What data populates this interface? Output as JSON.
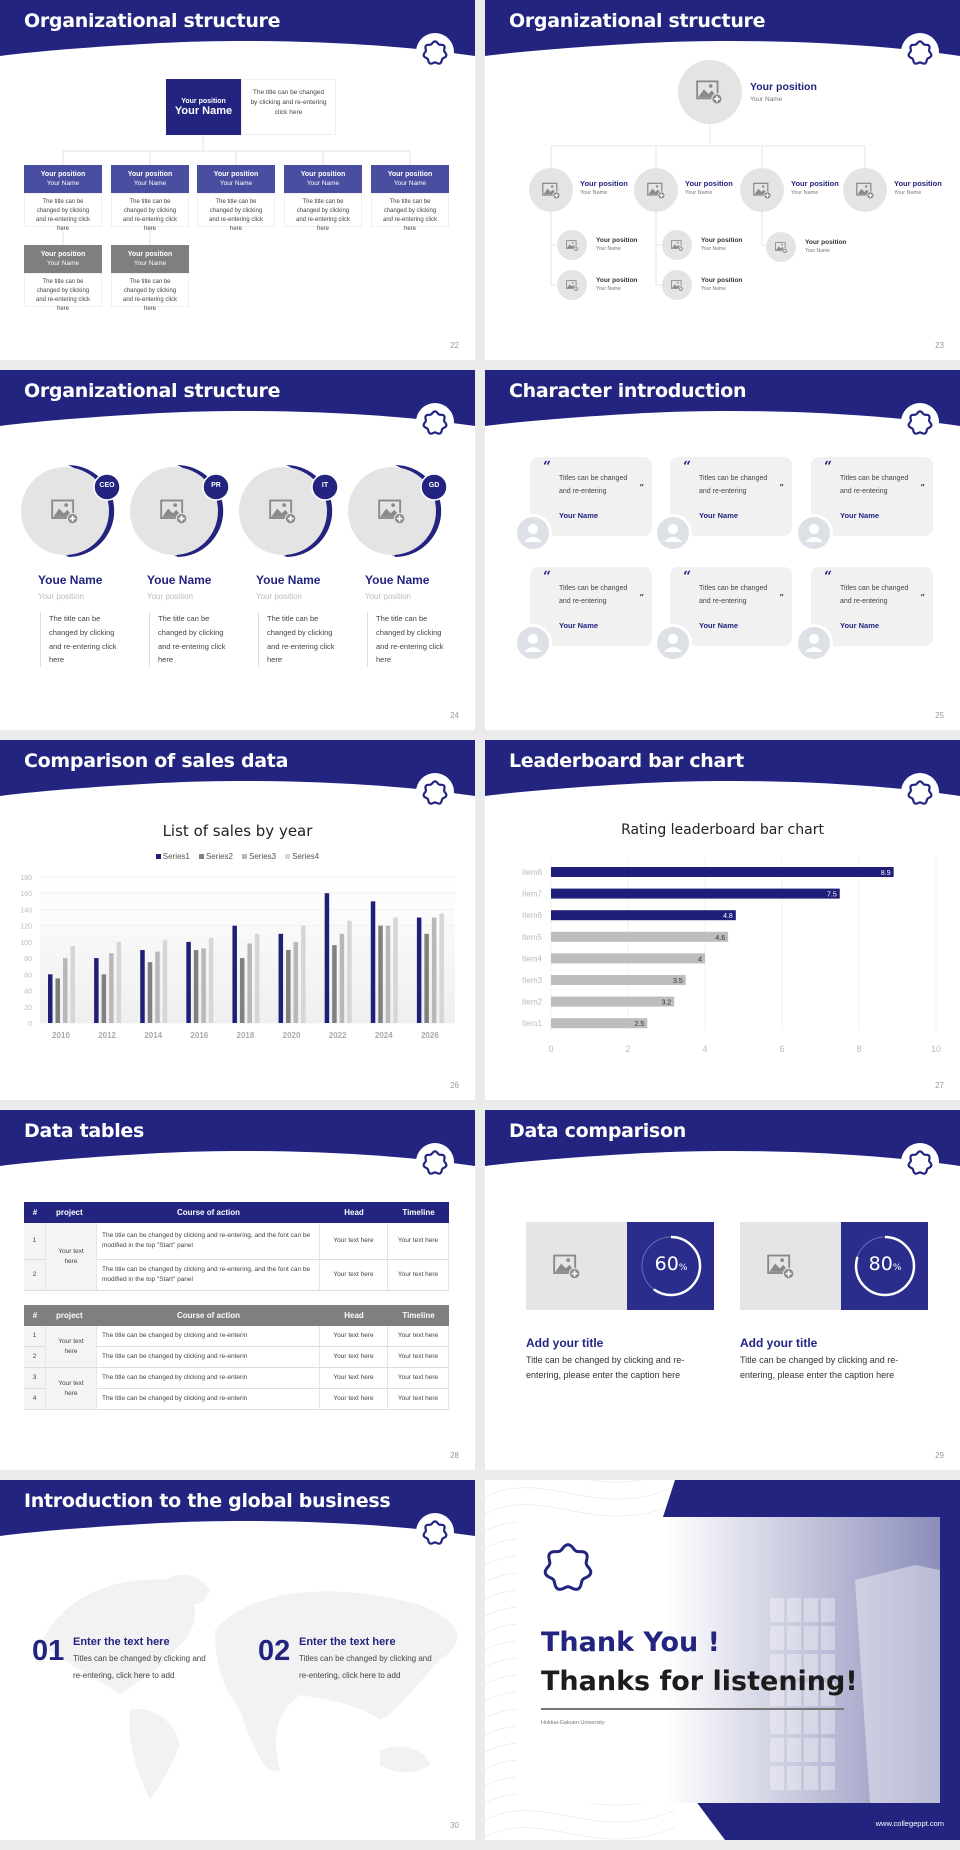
{
  "colors": {
    "primary": "#22247f",
    "mid": "#4a4ea0",
    "gray": "#7f7f7f",
    "light": "#e6e5e5",
    "bg": "#ebebeb"
  },
  "slides": [
    {
      "title": "Organizational structure",
      "page": "22",
      "top": {
        "position": "Your position",
        "name": "Your Name",
        "desc": "The title can be changed by clicking and re-entering click here"
      },
      "nodes": [
        {
          "position": "Your position",
          "name": "Your Name",
          "desc": "The title can be changed by clicking and re-entering click here",
          "tone": "blue"
        },
        {
          "position": "Your position",
          "name": "Your Name",
          "desc": "The title can be changed by clicking and re-entering click here",
          "tone": "blue"
        },
        {
          "position": "Your position",
          "name": "Your Name",
          "desc": "The title can be changed by clicking and re-entering click here",
          "tone": "blue"
        },
        {
          "position": "Your position",
          "name": "Your Name",
          "desc": "The title can be changed by clicking and re-entering click here",
          "tone": "blue"
        },
        {
          "position": "Your position",
          "name": "Your Name",
          "desc": "The title can be changed by clicking and re-entering click here",
          "tone": "blue"
        },
        {
          "position": "Your position",
          "name": "Your Name",
          "desc": "The title can be changed by clicking and re-entering click here",
          "tone": "gray"
        },
        {
          "position": "Your position",
          "name": "Your Name",
          "desc": "The title can be changed by clicking and re-entering click here",
          "tone": "gray"
        }
      ]
    },
    {
      "title": "Organizational structure",
      "page": "23",
      "top": {
        "position": "Your position",
        "name": "Your Name"
      },
      "level2": [
        {
          "position": "Your position",
          "name": "Your Name"
        },
        {
          "position": "Your position",
          "name": "Your Name"
        },
        {
          "position": "Your position",
          "name": "Your Name"
        },
        {
          "position": "Your position",
          "name": "Your Name"
        }
      ],
      "level3": [
        {
          "position": "Your position",
          "name": "Your Name"
        },
        {
          "position": "Your position",
          "name": "Your Name"
        },
        {
          "position": "Your position",
          "name": "Your Name"
        },
        {
          "position": "Your position",
          "name": "Your Name"
        },
        {
          "position": "Your position",
          "name": "Your Name"
        }
      ]
    },
    {
      "title": "Organizational structure",
      "page": "24",
      "people": [
        {
          "badge": "CEO",
          "name": "Youe Name",
          "position": "Your position",
          "desc": "The title can be changed by clicking and re-entering click here"
        },
        {
          "badge": "PR",
          "name": "Youe Name",
          "position": "Your position",
          "desc": "The title can be changed by clicking and re-entering click here"
        },
        {
          "badge": "IT",
          "name": "Youe Name",
          "position": "Your position",
          "desc": "The title can be changed by clicking and re-entering click here"
        },
        {
          "badge": "GD",
          "name": "Youe Name",
          "position": "Your position",
          "desc": "The title can be changed by clicking and re-entering click here"
        }
      ]
    },
    {
      "title": "Character introduction",
      "page": "25",
      "quotes": [
        {
          "text": "Titles can be changed and re-entering",
          "name": "Your Name"
        },
        {
          "text": "Titles can be changed and re-entering",
          "name": "Your Name"
        },
        {
          "text": "Titles can be changed and re-entering",
          "name": "Your Name"
        },
        {
          "text": "Titles can be changed and re-entering",
          "name": "Your Name"
        },
        {
          "text": "Titles can be changed and re-entering",
          "name": "Your Name"
        },
        {
          "text": "Titles can be changed and re-entering",
          "name": "Your Name"
        }
      ]
    },
    {
      "title": "Comparison of sales data",
      "page": "26"
    },
    {
      "title": "Leaderboard bar chart",
      "page": "27"
    },
    {
      "title": "Data tables",
      "page": "28",
      "headers": [
        "#",
        "project",
        "Course of action",
        "Head",
        "Timeline"
      ],
      "table1": {
        "project": "Your text here",
        "rows": [
          {
            "n": "1",
            "action": "The title can be changed by clicking and re-entering, and the font can be modified in the top \"Start\" panel",
            "head": "Your text here",
            "timeline": "Your text here"
          },
          {
            "n": "2",
            "action": "The title can be changed by clicking and re-entering, and the font can be modified in the top \"Start\" panel",
            "head": "Your text here",
            "timeline": "Your text here"
          }
        ]
      },
      "table2": {
        "projects": [
          "Your text here",
          "Your text here"
        ],
        "rows": [
          {
            "n": "1",
            "action": "The title can be changed by clicking and re-enterin",
            "head": "Your text here",
            "timeline": "Your text here"
          },
          {
            "n": "2",
            "action": "The title can be changed by clicking and re-enterin",
            "head": "Your text here",
            "timeline": "Your text here"
          },
          {
            "n": "3",
            "action": "The title can be changed by clicking and re-enterin",
            "head": "Your text here",
            "timeline": "Your text here"
          },
          {
            "n": "4",
            "action": "The title can be changed by clicking and re-enterin",
            "head": "Your text here",
            "timeline": "Your text here"
          }
        ]
      }
    },
    {
      "title": "Data comparison",
      "page": "29",
      "items": [
        {
          "value": 60,
          "value_label": "60",
          "unit": "%",
          "title": "Add your title",
          "desc": "Title can be changed by clicking and re-entering, please enter the caption here"
        },
        {
          "value": 80,
          "value_label": "80",
          "unit": "%",
          "title": "Add your title",
          "desc": "Title can be changed by clicking and re-entering, please enter the caption here"
        }
      ]
    },
    {
      "title": "Introduction to the global business",
      "page": "30",
      "items": [
        {
          "num": "01",
          "title": "Enter the text here",
          "desc": "Titles can be changed by clicking and re-entering, click here to add"
        },
        {
          "num": "02",
          "title": "Enter the text here",
          "desc": "Titles can be changed by clicking and re-entering, click here to add"
        }
      ]
    },
    {
      "thanks": "Thank You !",
      "subtitle": "Thanks for listening!",
      "university": "Hokkai-Gakuen University",
      "url": "www.collegeppt.com"
    }
  ],
  "chart_data": [
    {
      "type": "bar",
      "title": "List of sales by year",
      "xlabel": "",
      "ylabel": "",
      "ylim": [
        0,
        180
      ],
      "yticks": [
        0,
        20,
        40,
        60,
        80,
        100,
        120,
        140,
        160,
        180
      ],
      "grid": true,
      "legend": "top",
      "categories": [
        "2010",
        "2012",
        "2014",
        "2016",
        "2018",
        "2020",
        "2022",
        "2024",
        "2026"
      ],
      "series": [
        {
          "name": "Series1",
          "color": "#1f1f7a",
          "values": [
            60,
            80,
            90,
            100,
            120,
            110,
            160,
            150,
            130
          ]
        },
        {
          "name": "Series2",
          "color": "#808080",
          "values": [
            55,
            60,
            75,
            90,
            80,
            90,
            96,
            120,
            110
          ]
        },
        {
          "name": "Series3",
          "color": "#b8b8b8",
          "values": [
            80,
            86,
            88,
            92,
            98,
            100,
            110,
            120,
            130
          ]
        },
        {
          "name": "Series4",
          "color": "#d6d6d6",
          "values": [
            95,
            100,
            102,
            105,
            110,
            120,
            126,
            130,
            135
          ]
        }
      ]
    },
    {
      "type": "bar",
      "orientation": "horizontal",
      "title": "Rating leaderboard bar chart",
      "xlim": [
        0,
        10
      ],
      "xticks": [
        0,
        2,
        4,
        6,
        8,
        10
      ],
      "grid": true,
      "categories": [
        "Item8",
        "Item7",
        "Item6",
        "Item5",
        "Item4",
        "Item3",
        "Item2",
        "Item1"
      ],
      "values": [
        8.9,
        7.5,
        4.8,
        4.6,
        4,
        3.5,
        3.2,
        2.5
      ],
      "colors": [
        "#1f1f7a",
        "#1f1f7a",
        "#1f1f7a",
        "#bdbdbd",
        "#bdbdbd",
        "#bdbdbd",
        "#bdbdbd",
        "#bdbdbd"
      ]
    }
  ]
}
